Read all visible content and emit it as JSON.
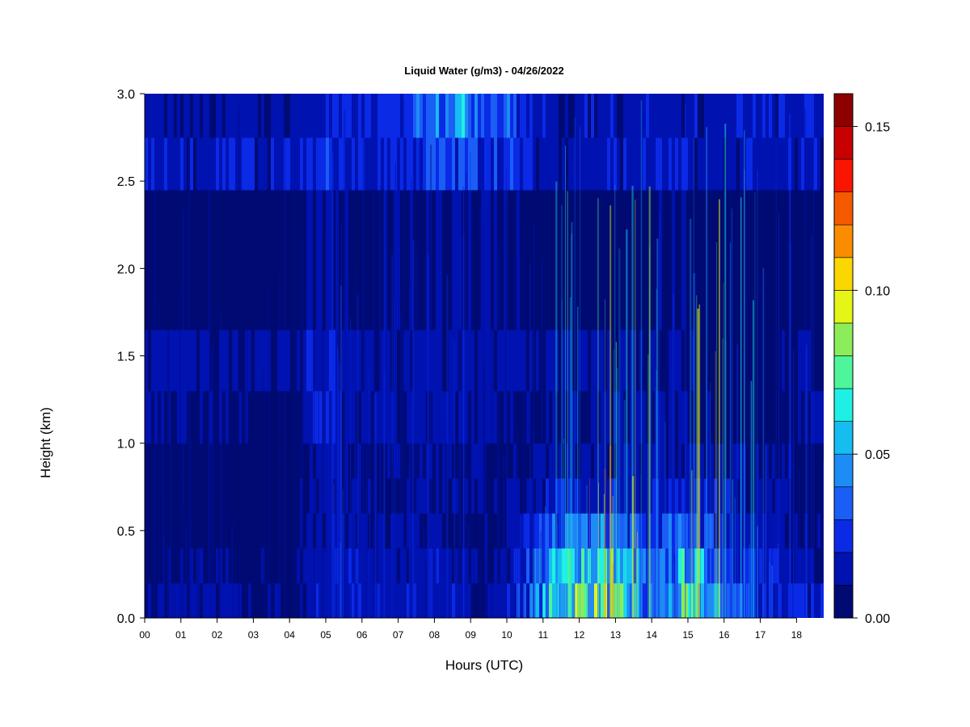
{
  "chart_data": {
    "type": "heatmap",
    "title": "Liquid Water (g/m3) - 04/26/2022",
    "xlabel": "Hours (UTC)",
    "ylabel": "Height (km)",
    "xlim": [
      0,
      18.8
    ],
    "ylim": [
      0.0,
      3.0
    ],
    "x_ticks": [
      "00",
      "01",
      "02",
      "03",
      "04",
      "05",
      "06",
      "07",
      "08",
      "09",
      "10",
      "11",
      "12",
      "13",
      "14",
      "15",
      "16",
      "17",
      "18"
    ],
    "y_ticks": [
      "0.0",
      "0.5",
      "1.0",
      "1.5",
      "2.0",
      "2.5",
      "3.0"
    ],
    "colorbar": {
      "levels": [
        0.0,
        0.01,
        0.02,
        0.03,
        0.04,
        0.05,
        0.06,
        0.07,
        0.08,
        0.09,
        0.1,
        0.11,
        0.12,
        0.13,
        0.14,
        0.15,
        0.16
      ],
      "colors": [
        "#000a73",
        "#0012b0",
        "#0a2ae6",
        "#1a5ef5",
        "#1e8cf5",
        "#15bdf0",
        "#1ff0e6",
        "#4ef59a",
        "#8ced5a",
        "#e5f516",
        "#fad700",
        "#fa8c00",
        "#f55a00",
        "#fa1500",
        "#c80000",
        "#8c0000"
      ],
      "tick_values": [
        0.0,
        0.05,
        0.1,
        0.15
      ],
      "tick_labels": [
        "0.00",
        "0.05",
        "0.10",
        "0.15"
      ]
    },
    "height_bands": [
      {
        "range": [
          0.0,
          0.2
        ],
        "values": [
          0.01,
          0.012,
          0.011,
          0.01,
          0.008,
          0.02,
          0.016,
          0.014,
          0.018,
          0.012,
          0.015,
          0.045,
          0.075,
          0.065,
          0.03,
          0.06,
          0.04,
          0.022,
          0.018,
          0.015
        ]
      },
      {
        "range": [
          0.2,
          0.4
        ],
        "values": [
          0.006,
          0.01,
          0.009,
          0.008,
          0.006,
          0.018,
          0.014,
          0.013,
          0.016,
          0.011,
          0.012,
          0.038,
          0.068,
          0.058,
          0.028,
          0.052,
          0.032,
          0.018,
          0.014,
          0.012
        ]
      },
      {
        "range": [
          0.4,
          0.6
        ],
        "values": [
          0.003,
          0.004,
          0.004,
          0.005,
          0.004,
          0.016,
          0.01,
          0.01,
          0.012,
          0.008,
          0.009,
          0.024,
          0.04,
          0.034,
          0.02,
          0.036,
          0.022,
          0.013,
          0.01,
          0.008
        ]
      },
      {
        "range": [
          0.6,
          0.8
        ],
        "values": [
          0.002,
          0.003,
          0.003,
          0.004,
          0.003,
          0.015,
          0.008,
          0.009,
          0.01,
          0.008,
          0.008,
          0.014,
          0.022,
          0.018,
          0.014,
          0.024,
          0.016,
          0.011,
          0.008,
          0.006
        ]
      },
      {
        "range": [
          0.8,
          1.0
        ],
        "values": [
          0.002,
          0.002,
          0.002,
          0.003,
          0.003,
          0.014,
          0.007,
          0.008,
          0.01,
          0.008,
          0.007,
          0.01,
          0.012,
          0.012,
          0.01,
          0.014,
          0.012,
          0.01,
          0.008,
          0.006
        ]
      },
      {
        "range": [
          1.0,
          1.3
        ],
        "values": [
          0.012,
          0.009,
          0.008,
          0.009,
          0.007,
          0.018,
          0.01,
          0.011,
          0.013,
          0.012,
          0.01,
          0.009,
          0.009,
          0.011,
          0.01,
          0.01,
          0.006,
          0.006,
          0.008,
          0.012
        ]
      },
      {
        "range": [
          1.3,
          1.65
        ],
        "values": [
          0.015,
          0.013,
          0.013,
          0.013,
          0.01,
          0.018,
          0.011,
          0.012,
          0.014,
          0.013,
          0.012,
          0.011,
          0.011,
          0.012,
          0.011,
          0.012,
          0.007,
          0.007,
          0.009,
          0.013
        ]
      },
      {
        "range": [
          1.65,
          2.45
        ],
        "values": [
          0.004,
          0.004,
          0.004,
          0.004,
          0.004,
          0.012,
          0.006,
          0.008,
          0.01,
          0.01,
          0.009,
          0.006,
          0.006,
          0.007,
          0.007,
          0.008,
          0.004,
          0.004,
          0.004,
          0.006
        ]
      },
      {
        "range": [
          2.45,
          2.75
        ],
        "values": [
          0.018,
          0.017,
          0.017,
          0.017,
          0.015,
          0.022,
          0.018,
          0.02,
          0.03,
          0.028,
          0.024,
          0.015,
          0.014,
          0.016,
          0.016,
          0.016,
          0.015,
          0.015,
          0.015,
          0.016
        ]
      },
      {
        "range": [
          2.75,
          3.0
        ],
        "values": [
          0.014,
          0.013,
          0.012,
          0.012,
          0.011,
          0.02,
          0.018,
          0.022,
          0.048,
          0.045,
          0.032,
          0.015,
          0.014,
          0.016,
          0.015,
          0.015,
          0.015,
          0.016,
          0.017,
          0.018
        ]
      }
    ]
  }
}
